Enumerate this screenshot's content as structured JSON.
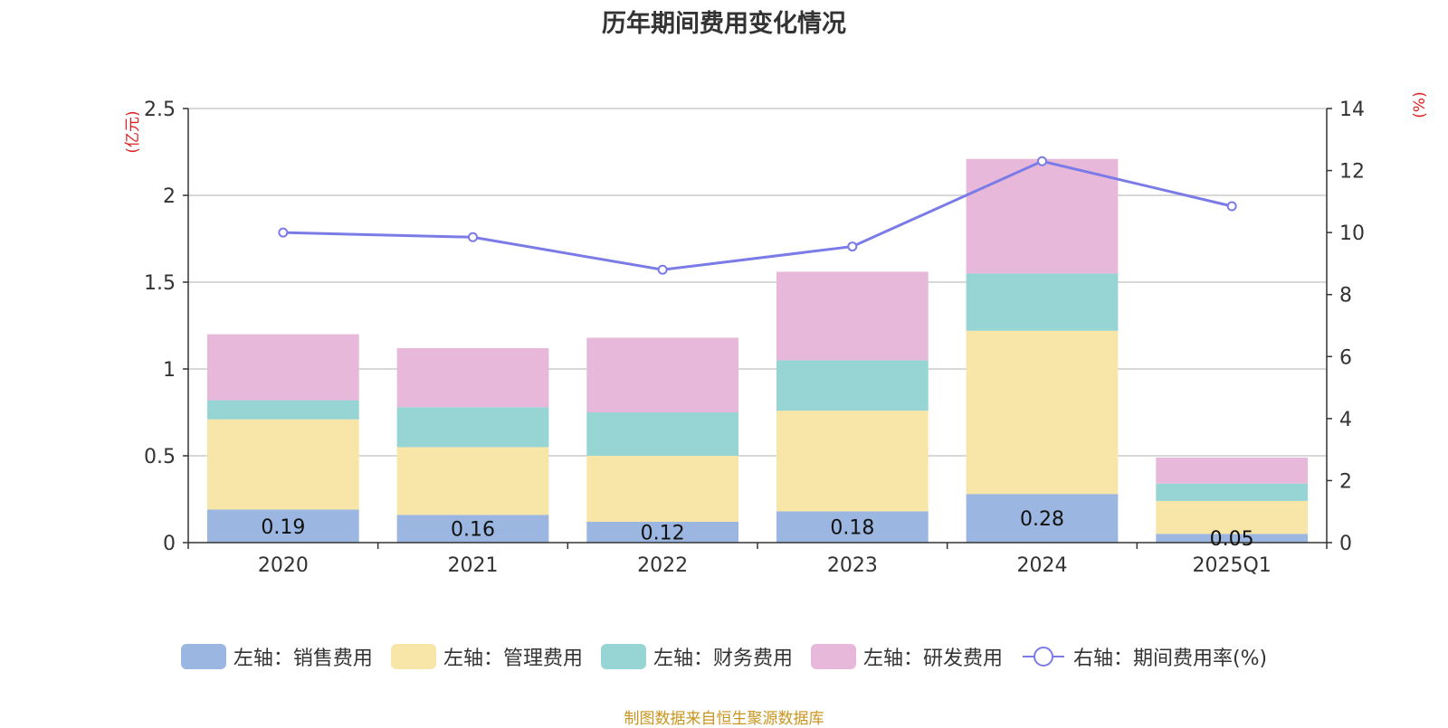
{
  "chart_data": {
    "type": "bar",
    "stacked": true,
    "title": "历年期间费用变化情况",
    "categories": [
      "2020",
      "2021",
      "2022",
      "2023",
      "2024",
      "2025Q1"
    ],
    "left_axis": {
      "unit": "(亿元)",
      "ylim": [
        0,
        2.5
      ],
      "ticks": [
        "0",
        "0.5",
        "1",
        "1.5",
        "2",
        "2.5"
      ]
    },
    "right_axis": {
      "unit": "(%)",
      "ylim": [
        0,
        14
      ],
      "ticks": [
        "0",
        "2",
        "4",
        "6",
        "8",
        "10",
        "12",
        "14"
      ]
    },
    "series": [
      {
        "name": "左轴：销售费用",
        "color": "#9bb6e0",
        "values": [
          0.19,
          0.16,
          0.12,
          0.18,
          0.28,
          0.05
        ],
        "labels": [
          "0.19",
          "0.16",
          "0.12",
          "0.18",
          "0.28",
          "0.05"
        ]
      },
      {
        "name": "左轴：管理费用",
        "color": "#f7e6a8",
        "values": [
          0.52,
          0.39,
          0.38,
          0.58,
          0.94,
          0.19
        ]
      },
      {
        "name": "左轴：财务费用",
        "color": "#97d4d4",
        "values": [
          0.11,
          0.23,
          0.25,
          0.29,
          0.33,
          0.1
        ]
      },
      {
        "name": "左轴：研发费用",
        "color": "#e7b8d9",
        "values": [
          0.38,
          0.34,
          0.43,
          0.51,
          0.66,
          0.15
        ]
      }
    ],
    "line_series": {
      "name": "右轴：期间费用率(%)",
      "color": "#7b7be8",
      "values": [
        10.0,
        9.85,
        8.8,
        9.55,
        12.3,
        10.85
      ]
    },
    "grid": true,
    "legend_position": "bottom-center"
  },
  "source_note": "制图数据来自恒生聚源数据库"
}
